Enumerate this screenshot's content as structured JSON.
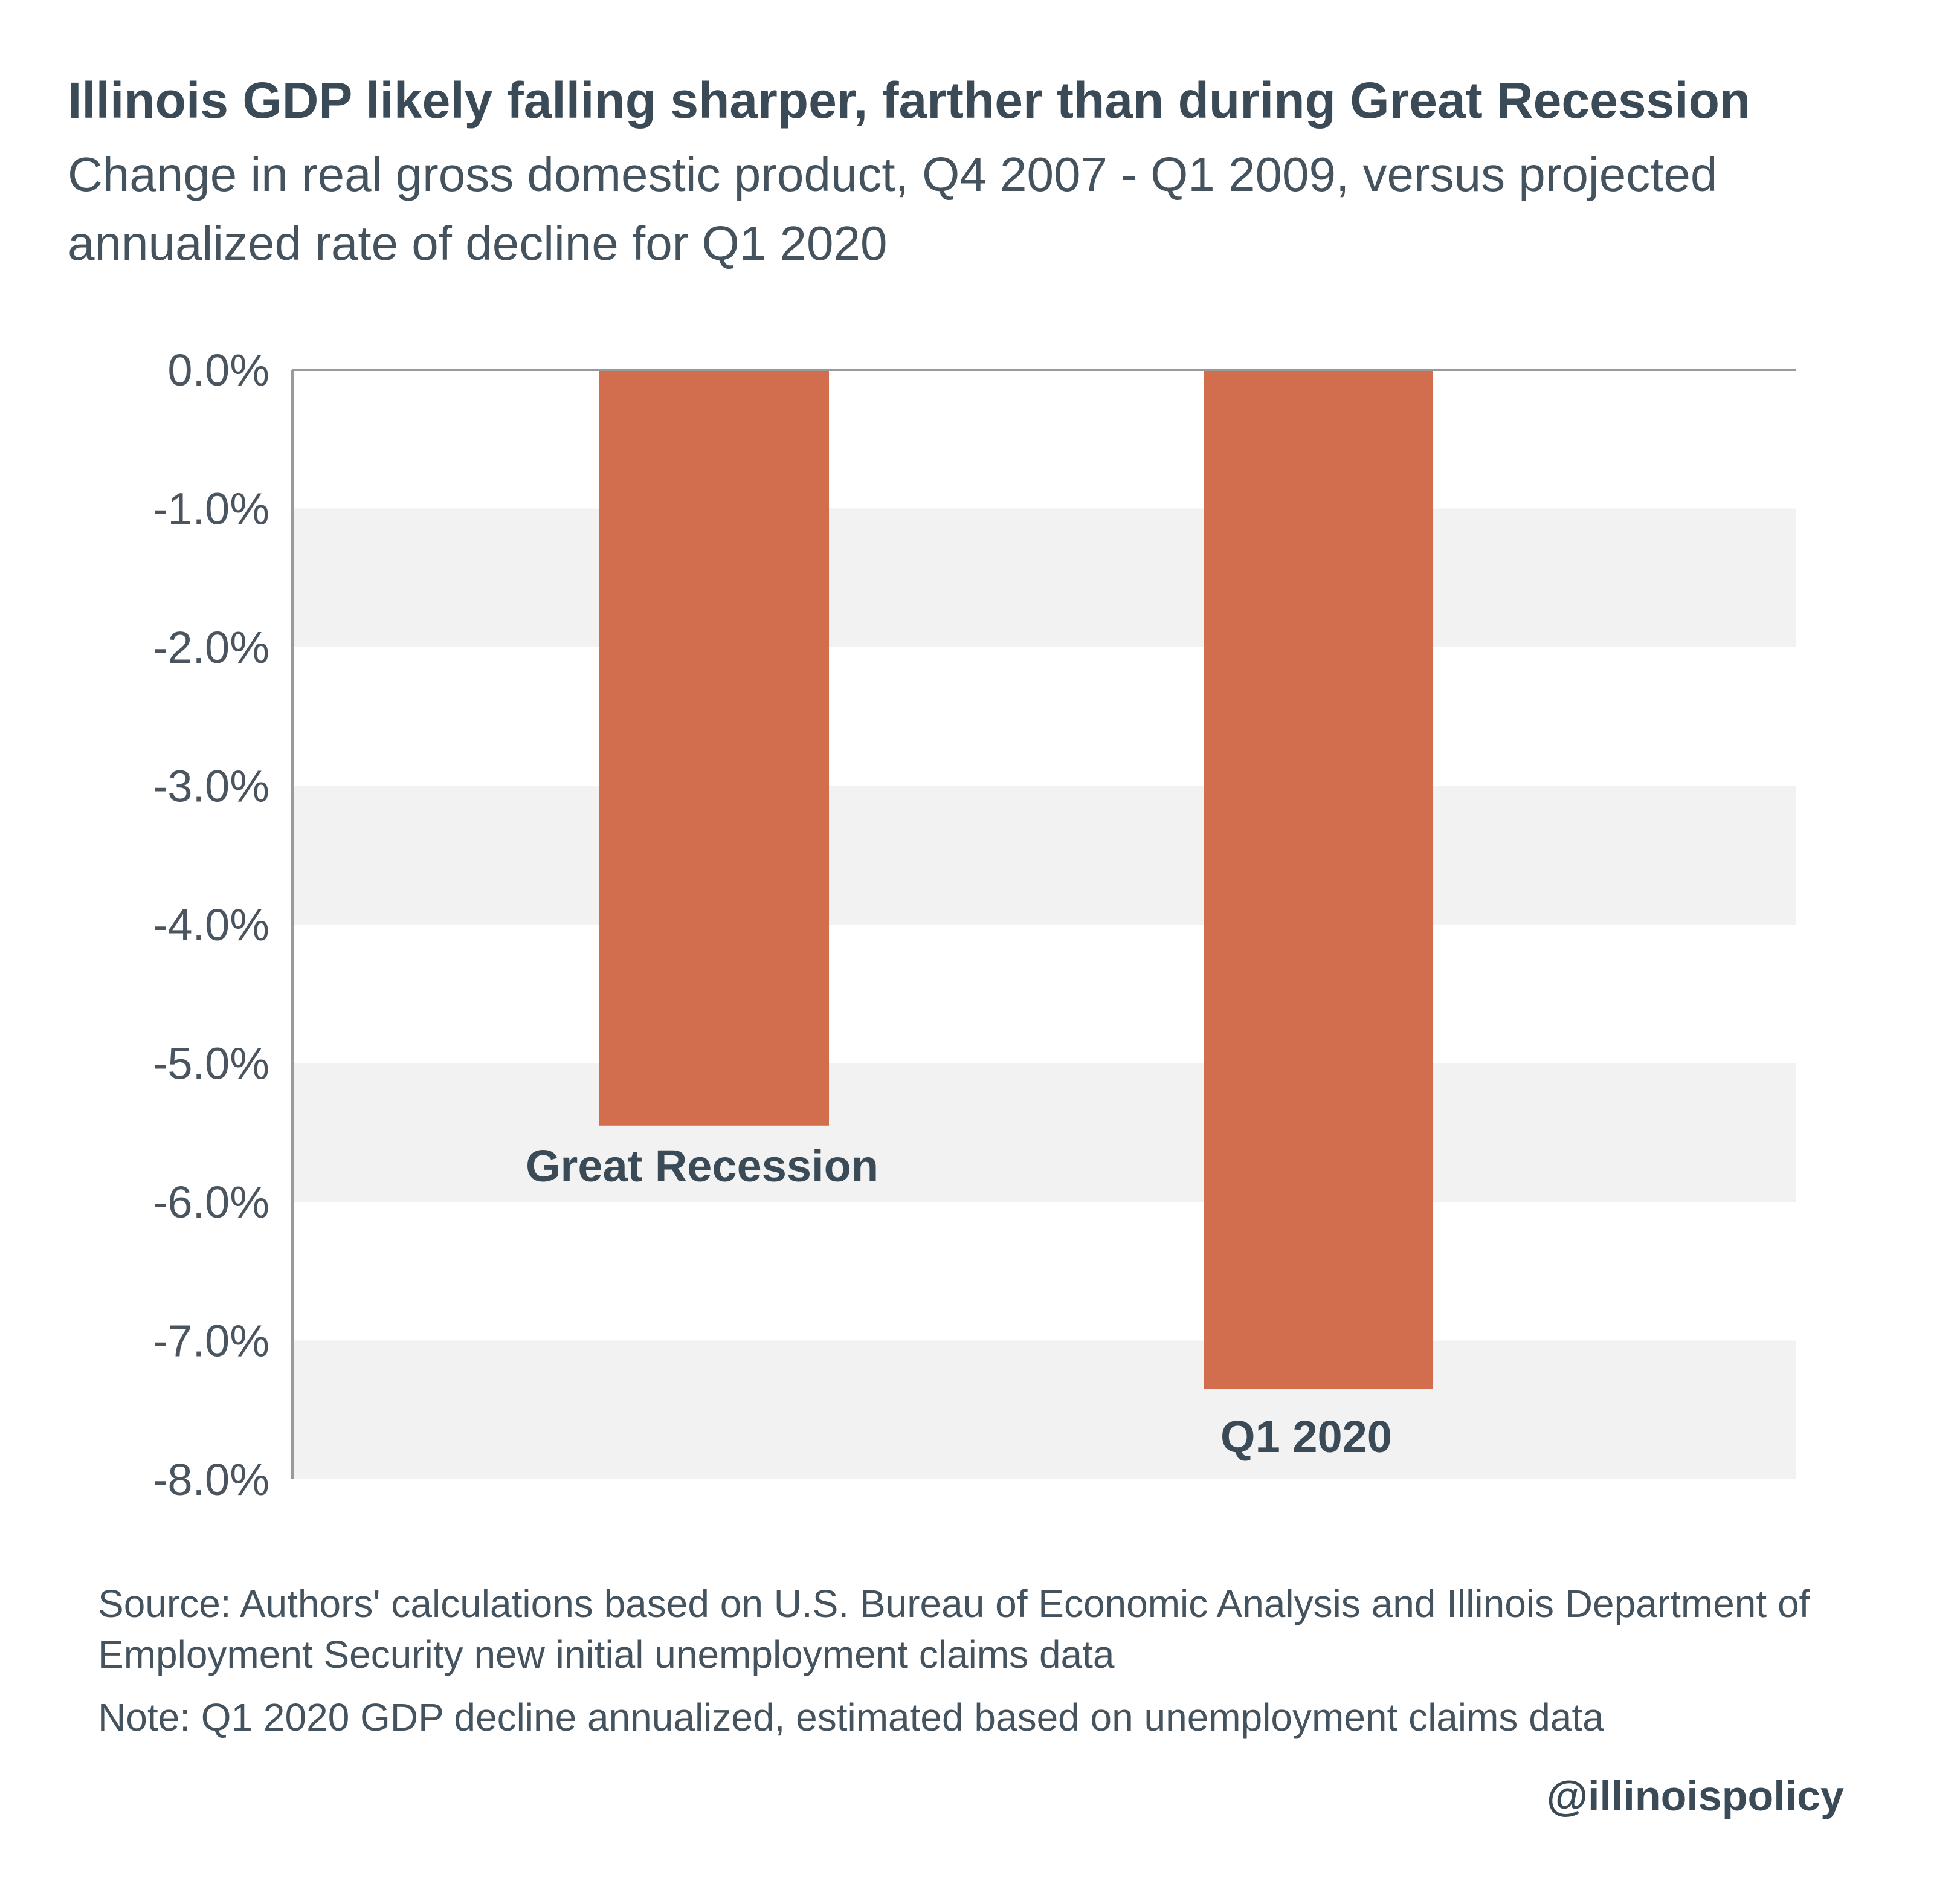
{
  "header": {
    "title": "Illinois GDP likely falling sharper, farther than during Great Recession",
    "subtitle": "Change in real gross domestic product, Q4 2007 - Q1 2009, versus projected annualized rate of decline for Q1 2020"
  },
  "chart_data": {
    "type": "bar",
    "categories": [
      "Great Recession",
      "Q1 2020"
    ],
    "values": [
      -5.45,
      -7.35
    ],
    "ylim": [
      -8.0,
      0.0
    ],
    "yticks": [
      "0.0%",
      "-1.0%",
      "-2.0%",
      "-3.0%",
      "-4.0%",
      "-5.0%",
      "-6.0%",
      "-7.0%",
      "-8.0%"
    ],
    "ytick_values": [
      0,
      -1,
      -2,
      -3,
      -4,
      -5,
      -6,
      -7,
      -8
    ],
    "bar_color": "#d26e4e",
    "band_color": "#f2f2f2",
    "axis_color": "#9a9a9a",
    "grid": "alternating bands",
    "legend": "none"
  },
  "footer": {
    "source": "Source: Authors' calculations based on U.S. Bureau of Economic Analysis and Illinois Department of Employment Security new initial unemployment claims data",
    "note": "Note: Q1 2020 GDP decline annualized, estimated based on unemployment claims data",
    "handle": "@illinoispolicy"
  }
}
